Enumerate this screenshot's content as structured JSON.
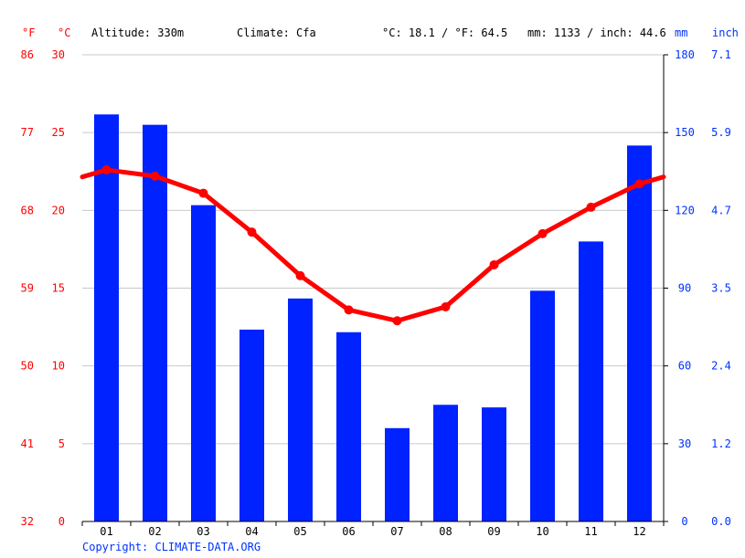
{
  "header": {
    "unit_f": "°F",
    "unit_c": "°C",
    "altitude": "Altitude: 330m",
    "climate": "Climate: Cfa",
    "avg_temp": "°C: 18.1 / °F: 64.5",
    "precip_total": "mm: 1133 / inch: 44.6",
    "unit_mm": "mm",
    "unit_inch": "inch"
  },
  "copyright": "Copyright: CLIMATE-DATA.ORG",
  "colors": {
    "precip_bar": "#0022ff",
    "temp_line": "#ff0000",
    "left_axis": "#ff0000",
    "right_axis": "#0033ff",
    "grid": "#c8c8c8"
  },
  "chart_data": {
    "type": "bar",
    "categories": [
      "01",
      "02",
      "03",
      "04",
      "05",
      "06",
      "07",
      "08",
      "09",
      "10",
      "11",
      "12"
    ],
    "series": [
      {
        "kind": "bar",
        "axis": "right",
        "values": [
          157,
          153,
          122,
          74,
          86,
          73,
          36,
          45,
          44,
          89,
          108,
          145
        ]
      },
      {
        "kind": "line",
        "axis": "left",
        "values": [
          22.6,
          22.2,
          21.1,
          18.6,
          15.8,
          13.6,
          12.9,
          13.8,
          16.5,
          18.5,
          20.2,
          21.7
        ]
      }
    ],
    "left_axis": {
      "ylim": [
        0,
        30
      ],
      "ticks_c": [
        "0",
        "5",
        "10",
        "15",
        "20",
        "25",
        "30"
      ],
      "ticks_f": [
        "32",
        "41",
        "50",
        "59",
        "68",
        "77",
        "86"
      ]
    },
    "right_axis": {
      "ylim": [
        0,
        180
      ],
      "ticks_mm": [
        "0",
        "30",
        "60",
        "90",
        "120",
        "150",
        "180"
      ],
      "ticks_inch": [
        "0.0",
        "1.2",
        "2.4",
        "3.5",
        "4.7",
        "5.9",
        "7.1"
      ]
    },
    "grid": true
  }
}
